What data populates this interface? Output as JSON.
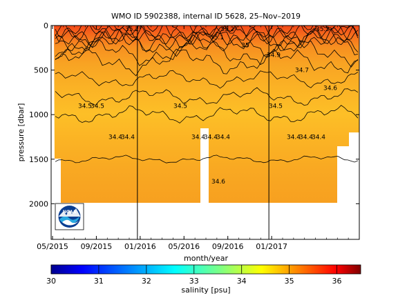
{
  "chart_data": {
    "type": "heatmap",
    "title": "WMO ID 5902388, internal ID 5628, 25–Nov–2019",
    "xlabel": "month/year",
    "ylabel": "pressure [dbar]",
    "x_ticks": [
      "05/2015",
      "09/2015",
      "01/2016",
      "05/2016",
      "09/2016",
      "01/2017"
    ],
    "y_ticks": [
      0,
      500,
      1000,
      1500,
      2000
    ],
    "ylim": [
      2400,
      0
    ],
    "x_range": [
      "2015-05",
      "2017-09"
    ],
    "year_lines": [
      "01/2016",
      "01/2017"
    ],
    "colorbar": {
      "label": "salinity [psu]",
      "ticks": [
        30,
        31,
        32,
        33,
        34,
        35,
        36
      ],
      "range": [
        30,
        36.5
      ],
      "colormap": [
        "#00008f",
        "#0000ff",
        "#0080ff",
        "#00ffff",
        "#80ff80",
        "#ffff00",
        "#ff8000",
        "#ff0000",
        "#800000"
      ]
    },
    "contour_labels": [
      "35.2",
      "35.2",
      "35.2",
      "35.1",
      "35",
      "34.9",
      "34.7",
      "34.6",
      "34.5",
      "34.5",
      "34.5",
      "34.5",
      "34.4",
      "34.4",
      "34.4",
      "34.4",
      "34.4",
      "34.4",
      "34.4",
      "34.4",
      "34.6"
    ],
    "profiles": [
      {
        "date": "2015-05",
        "max_pressure": 1500
      },
      {
        "date": "2015-06",
        "max_pressure": 2000
      },
      {
        "date": "2016-04",
        "max_pressure": 2000
      },
      {
        "date": "2016-04",
        "max_pressure": 1150
      },
      {
        "date": "2016-05",
        "max_pressure": 2000
      },
      {
        "date": "2017-04",
        "max_pressure": 2000
      },
      {
        "date": "2017-05",
        "max_pressure": 1450
      },
      {
        "date": "2017-07",
        "max_pressure": 1250
      }
    ],
    "layers": [
      {
        "label": "35.2",
        "pressure_range": [
          0,
          100
        ],
        "salinity": 35.2
      },
      {
        "label": "35.1",
        "pressure_range": [
          100,
          200
        ],
        "salinity": 35.1
      },
      {
        "label": "35",
        "pressure_range": [
          200,
          300
        ],
        "salinity": 35.0
      },
      {
        "label": "34.9",
        "pressure_range": [
          300,
          400
        ],
        "salinity": 34.9
      },
      {
        "label": "34.7",
        "pressure_range": [
          400,
          600
        ],
        "salinity": 34.7
      },
      {
        "label": "34.6",
        "pressure_range": [
          600,
          800
        ],
        "salinity": 34.6
      },
      {
        "label": "34.5",
        "pressure_range": [
          800,
          1000
        ],
        "salinity": 34.5
      },
      {
        "label": "34.4",
        "pressure_range": [
          1000,
          1500
        ],
        "salinity": 34.4
      },
      {
        "label": "34.6",
        "pressure_range": [
          1500,
          2000
        ],
        "salinity": 34.6
      }
    ]
  },
  "logo": {
    "text": "NOAA"
  }
}
